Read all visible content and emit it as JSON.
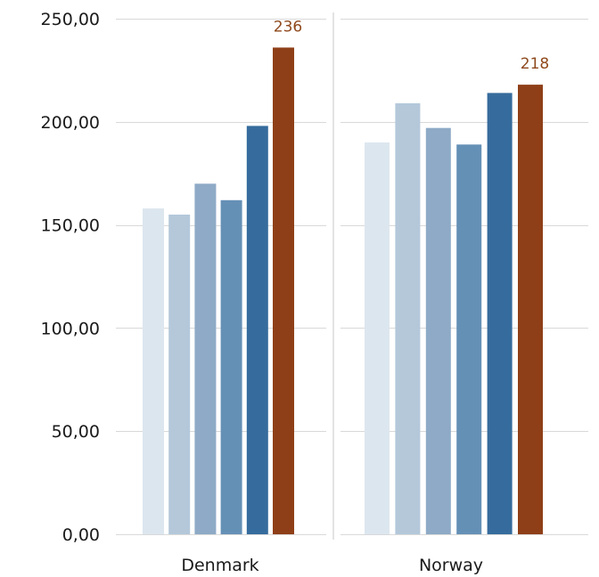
{
  "chart_data": {
    "type": "bar",
    "title": "",
    "xlabel": "",
    "ylabel": "",
    "ylim": [
      0,
      250
    ],
    "yticks": [
      0,
      50,
      100,
      150,
      200,
      250
    ],
    "ytick_labels": [
      "0,00",
      "50,00",
      "100,00",
      "150,00",
      "200,00",
      "250,00"
    ],
    "grid": true,
    "legend": "none",
    "categories": [
      "Denmark",
      "Norway"
    ],
    "series": [
      {
        "values": [
          158,
          190
        ],
        "color": "#dce6ef"
      },
      {
        "values": [
          155,
          209
        ],
        "color": "#b4c8da"
      },
      {
        "values": [
          170,
          197
        ],
        "color": "#8eaac6"
      },
      {
        "values": [
          162,
          189
        ],
        "color": "#6590b6"
      },
      {
        "values": [
          198,
          214
        ],
        "color": "#366c9d"
      },
      {
        "values": [
          236,
          218
        ],
        "color": "#8f3f17",
        "data_labels": [
          "236",
          "218"
        ]
      }
    ]
  }
}
